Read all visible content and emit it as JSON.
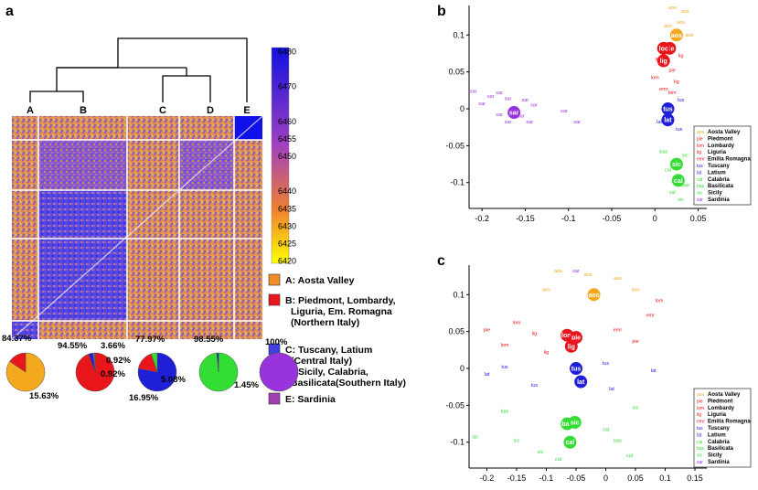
{
  "panel_labels": {
    "a": "a",
    "b": "b",
    "c": "c"
  },
  "colors": {
    "aos": "#f4a81d",
    "northern": "#e8161b",
    "central": "#1f1fd8",
    "southern": "#33dd33",
    "sardinia": "#9933dd",
    "heat_low": "#ffff00",
    "heat_mid": "#a040c0",
    "heat_high": "#1010e0"
  },
  "heatmap": {
    "cluster_labels": [
      "A",
      "B",
      "C",
      "D",
      "E"
    ],
    "colorbar": {
      "min": 6420,
      "max": 6480,
      "ticks": [
        "6480",
        "6470",
        "6460",
        "6455",
        "6450",
        "6440",
        "6435",
        "6430",
        "6425",
        "6420"
      ]
    }
  },
  "legend_a": [
    {
      "key": "A",
      "line1": "A: Aosta Valley",
      "line2": "",
      "line3": "",
      "color": "#f28c28"
    },
    {
      "key": "B",
      "line1": "B: Piedmont, Lombardy,",
      "line2": "Liguria, Em. Romagna",
      "line3": "(Northern Italy)",
      "color": "#e8161b"
    },
    {
      "key": "C",
      "line1": "C: Tuscany, Latium",
      "line2": "(Central Italy)",
      "line3": "",
      "color": "#4040e0"
    },
    {
      "key": "D",
      "line1": "D: Sicily, Calabria,",
      "line2": "Basilicata(Southern Italy)",
      "line3": "",
      "color": "#ccee22"
    },
    {
      "key": "E",
      "line1": "E: Sardinia",
      "line2": "",
      "line3": "",
      "color": "#a040b0"
    }
  ],
  "pies": [
    {
      "color": "#f4a81d",
      "slices": [
        {
          "value": 84.37,
          "label": "84.37%",
          "color": "#f4a81d"
        },
        {
          "value": 15.63,
          "label": "15.63%",
          "color": "#e8161b"
        }
      ]
    },
    {
      "color": "#e8161b",
      "slices": [
        {
          "value": 94.55,
          "label": "94.55%",
          "color": "#e8161b"
        },
        {
          "value": 3.66,
          "label": "3.66%",
          "color": "#1f1fd8"
        },
        {
          "value": 0.92,
          "label": "0.92%",
          "color": "#33dd33"
        },
        {
          "value": 0.92,
          "label": "0.92%",
          "color": "#9933dd"
        }
      ]
    },
    {
      "color": "#1f1fd8",
      "slices": [
        {
          "value": 77.97,
          "label": "77.97%",
          "color": "#1f1fd8"
        },
        {
          "value": 16.95,
          "label": "16.95%",
          "color": "#e8161b"
        },
        {
          "value": 5.08,
          "label": "5.08%",
          "color": "#33dd33"
        }
      ]
    },
    {
      "color": "#33dd33",
      "slices": [
        {
          "value": 98.55,
          "label": "98.55%",
          "color": "#33dd33"
        },
        {
          "value": 1.45,
          "label": "1.45%",
          "color": "#1f1fd8"
        }
      ]
    },
    {
      "color": "#9933dd",
      "slices": [
        {
          "value": 100,
          "label": "100%",
          "color": "#9933dd"
        }
      ]
    }
  ],
  "chart_data": [
    {
      "panel": "b",
      "type": "scatter",
      "xlim": [
        -0.215,
        0.06
      ],
      "ylim": [
        -0.135,
        0.14
      ],
      "x_ticks": [
        "-0.2",
        "-0.15",
        "-0.1",
        "-0.05",
        "0",
        "0.05"
      ],
      "y_ticks": [
        "0.1",
        "0.05",
        "0",
        "-0.05",
        "-0.1"
      ],
      "legend": [
        {
          "code": "aos",
          "name": "Aosta Valley",
          "color": "#f4a81d"
        },
        {
          "code": "pie",
          "name": "Piedmont",
          "color": "#e8161b"
        },
        {
          "code": "lom",
          "name": "Lombardy",
          "color": "#e8161b"
        },
        {
          "code": "lig",
          "name": "Liguria",
          "color": "#e8161b"
        },
        {
          "code": "emr",
          "name": "Emilia Romagna",
          "color": "#e8161b"
        },
        {
          "code": "tus",
          "name": "Tuscany",
          "color": "#1f1fd8"
        },
        {
          "code": "lat",
          "name": "Latium",
          "color": "#1f1fd8"
        },
        {
          "code": "cal",
          "name": "Calabria",
          "color": "#33dd33"
        },
        {
          "code": "bas",
          "name": "Basilicata",
          "color": "#33dd33"
        },
        {
          "code": "sic",
          "name": "Sicily",
          "color": "#33dd33"
        },
        {
          "code": "sar",
          "name": "Sardinia",
          "color": "#9933dd"
        }
      ],
      "centroids": [
        {
          "label": "aos",
          "x": 0.025,
          "y": 0.1,
          "color": "#f4a81d"
        },
        {
          "label": "lig",
          "x": 0.01,
          "y": 0.065,
          "color": "#e8161b"
        },
        {
          "label": "pie",
          "x": 0.017,
          "y": 0.082,
          "color": "#e8161b"
        },
        {
          "label": "loc",
          "x": 0.01,
          "y": 0.082,
          "color": "#e8161b"
        },
        {
          "label": "tus",
          "x": 0.015,
          "y": 0.0,
          "color": "#1f1fd8"
        },
        {
          "label": "lat",
          "x": 0.015,
          "y": -0.015,
          "color": "#1f1fd8"
        },
        {
          "label": "sic",
          "x": 0.025,
          "y": -0.075,
          "color": "#33dd33"
        },
        {
          "label": "cal",
          "x": 0.027,
          "y": -0.097,
          "color": "#33dd33"
        },
        {
          "label": "sar",
          "x": -0.163,
          "y": -0.005,
          "color": "#9933dd"
        }
      ],
      "points": [
        {
          "label": "aos",
          "x": 0.02,
          "y": 0.135,
          "color": "#f4a81d"
        },
        {
          "label": "aos",
          "x": 0.035,
          "y": 0.13,
          "color": "#f4a81d"
        },
        {
          "label": "aos",
          "x": 0.03,
          "y": 0.115,
          "color": "#f4a81d"
        },
        {
          "label": "aos",
          "x": 0.015,
          "y": 0.11,
          "color": "#f4a81d"
        },
        {
          "label": "aos",
          "x": 0.04,
          "y": 0.098,
          "color": "#f4a81d"
        },
        {
          "label": "lig",
          "x": 0.03,
          "y": 0.07,
          "color": "#e8161b"
        },
        {
          "label": "lom",
          "x": 0.005,
          "y": 0.065,
          "color": "#e8161b"
        },
        {
          "label": "pie",
          "x": 0.02,
          "y": 0.05,
          "color": "#e8161b"
        },
        {
          "label": "lom",
          "x": 0.0,
          "y": 0.04,
          "color": "#e8161b"
        },
        {
          "label": "lig",
          "x": 0.025,
          "y": 0.035,
          "color": "#e8161b"
        },
        {
          "label": "emr",
          "x": 0.01,
          "y": 0.025,
          "color": "#e8161b"
        },
        {
          "label": "lom",
          "x": 0.02,
          "y": 0.02,
          "color": "#e8161b"
        },
        {
          "label": "tus",
          "x": 0.03,
          "y": 0.01,
          "color": "#1f1fd8"
        },
        {
          "label": "lat",
          "x": 0.005,
          "y": -0.02,
          "color": "#1f1fd8"
        },
        {
          "label": "tus",
          "x": 0.028,
          "y": -0.03,
          "color": "#1f1fd8"
        },
        {
          "label": "bas",
          "x": 0.01,
          "y": -0.06,
          "color": "#33dd33"
        },
        {
          "label": "sic",
          "x": 0.035,
          "y": -0.065,
          "color": "#33dd33"
        },
        {
          "label": "cal",
          "x": 0.015,
          "y": -0.085,
          "color": "#33dd33"
        },
        {
          "label": "bas",
          "x": 0.035,
          "y": -0.105,
          "color": "#33dd33"
        },
        {
          "label": "cal",
          "x": 0.02,
          "y": -0.115,
          "color": "#33dd33"
        },
        {
          "label": "sic",
          "x": 0.03,
          "y": -0.125,
          "color": "#33dd33"
        },
        {
          "label": "sar",
          "x": -0.21,
          "y": 0.022,
          "color": "#9933dd"
        },
        {
          "label": "sar",
          "x": -0.19,
          "y": 0.015,
          "color": "#9933dd"
        },
        {
          "label": "sar",
          "x": -0.2,
          "y": 0.005,
          "color": "#9933dd"
        },
        {
          "label": "sar",
          "x": -0.18,
          "y": 0.02,
          "color": "#9933dd"
        },
        {
          "label": "sar",
          "x": -0.17,
          "y": 0.012,
          "color": "#9933dd"
        },
        {
          "label": "sar",
          "x": -0.15,
          "y": 0.01,
          "color": "#9933dd"
        },
        {
          "label": "sar",
          "x": -0.14,
          "y": 0.003,
          "color": "#9933dd"
        },
        {
          "label": "sar",
          "x": -0.18,
          "y": -0.01,
          "color": "#9933dd"
        },
        {
          "label": "sar",
          "x": -0.155,
          "y": -0.012,
          "color": "#9933dd"
        },
        {
          "label": "sar",
          "x": -0.17,
          "y": -0.02,
          "color": "#9933dd"
        },
        {
          "label": "sar",
          "x": -0.145,
          "y": -0.02,
          "color": "#9933dd"
        },
        {
          "label": "sar",
          "x": -0.105,
          "y": -0.005,
          "color": "#9933dd"
        },
        {
          "label": "sar",
          "x": -0.09,
          "y": -0.02,
          "color": "#9933dd"
        }
      ]
    },
    {
      "panel": "c",
      "type": "scatter",
      "xlim": [
        -0.23,
        0.17
      ],
      "ylim": [
        -0.135,
        0.14
      ],
      "x_ticks": [
        "-0.2",
        "-0.15",
        "-0.1",
        "-0.05",
        "0",
        "0.05",
        "0.1",
        "0.15"
      ],
      "y_ticks": [
        "0.1",
        "0.05",
        "0",
        "-0.05",
        "-0.1"
      ],
      "legend": [
        {
          "code": "aos",
          "name": "Aosta Valley",
          "color": "#f4a81d"
        },
        {
          "code": "pie",
          "name": "Piedmont",
          "color": "#e8161b"
        },
        {
          "code": "lom",
          "name": "Lombardy",
          "color": "#e8161b"
        },
        {
          "code": "lig",
          "name": "Liguria",
          "color": "#e8161b"
        },
        {
          "code": "emr",
          "name": "Emilia Romagna",
          "color": "#e8161b"
        },
        {
          "code": "tus",
          "name": "Tuscany",
          "color": "#1f1fd8"
        },
        {
          "code": "lat",
          "name": "Latium",
          "color": "#1f1fd8"
        },
        {
          "code": "cal",
          "name": "Calabria",
          "color": "#33dd33"
        },
        {
          "code": "bas",
          "name": "Basilicata",
          "color": "#33dd33"
        },
        {
          "code": "sic",
          "name": "Sicily",
          "color": "#33dd33"
        },
        {
          "code": "sar",
          "name": "Sardinia",
          "color": "#9933dd"
        }
      ],
      "centroids": [
        {
          "label": "aos",
          "x": -0.02,
          "y": 0.1,
          "color": "#f4a81d"
        },
        {
          "label": "lom",
          "x": -0.065,
          "y": 0.045,
          "color": "#e8161b"
        },
        {
          "label": "pie",
          "x": -0.05,
          "y": 0.042,
          "color": "#e8161b"
        },
        {
          "label": "lig",
          "x": -0.058,
          "y": 0.03,
          "color": "#e8161b"
        },
        {
          "label": "tus",
          "x": -0.05,
          "y": 0.0,
          "color": "#1f1fd8"
        },
        {
          "label": "lat",
          "x": -0.042,
          "y": -0.018,
          "color": "#1f1fd8"
        },
        {
          "label": "bas",
          "x": -0.065,
          "y": -0.075,
          "color": "#33dd33"
        },
        {
          "label": "sic",
          "x": -0.052,
          "y": -0.073,
          "color": "#33dd33"
        },
        {
          "label": "cal",
          "x": -0.06,
          "y": -0.1,
          "color": "#33dd33"
        }
      ],
      "points": [
        {
          "label": "aos",
          "x": -0.08,
          "y": 0.13,
          "color": "#f4a81d"
        },
        {
          "label": "aos",
          "x": -0.03,
          "y": 0.125,
          "color": "#f4a81d"
        },
        {
          "label": "aos",
          "x": 0.02,
          "y": 0.12,
          "color": "#f4a81d"
        },
        {
          "label": "aos",
          "x": 0.05,
          "y": 0.105,
          "color": "#f4a81d"
        },
        {
          "label": "aos",
          "x": -0.1,
          "y": 0.105,
          "color": "#f4a81d"
        },
        {
          "label": "lom",
          "x": 0.09,
          "y": 0.09,
          "color": "#e8161b"
        },
        {
          "label": "emr",
          "x": 0.075,
          "y": 0.07,
          "color": "#e8161b"
        },
        {
          "label": "pie",
          "x": -0.2,
          "y": 0.05,
          "color": "#e8161b"
        },
        {
          "label": "lom",
          "x": -0.15,
          "y": 0.06,
          "color": "#e8161b"
        },
        {
          "label": "lig",
          "x": -0.12,
          "y": 0.045,
          "color": "#e8161b"
        },
        {
          "label": "emr",
          "x": 0.02,
          "y": 0.05,
          "color": "#e8161b"
        },
        {
          "label": "pie",
          "x": 0.05,
          "y": 0.035,
          "color": "#e8161b"
        },
        {
          "label": "lom",
          "x": -0.17,
          "y": 0.03,
          "color": "#e8161b"
        },
        {
          "label": "lig",
          "x": -0.1,
          "y": 0.02,
          "color": "#e8161b"
        },
        {
          "label": "tus",
          "x": -0.17,
          "y": 0.0,
          "color": "#1f1fd8"
        },
        {
          "label": "lat",
          "x": -0.2,
          "y": -0.01,
          "color": "#1f1fd8"
        },
        {
          "label": "tus",
          "x": 0.0,
          "y": 0.005,
          "color": "#1f1fd8"
        },
        {
          "label": "lat",
          "x": 0.08,
          "y": -0.005,
          "color": "#1f1fd8"
        },
        {
          "label": "tus",
          "x": -0.12,
          "y": -0.025,
          "color": "#1f1fd8"
        },
        {
          "label": "lat",
          "x": 0.01,
          "y": -0.03,
          "color": "#1f1fd8"
        },
        {
          "label": "sic",
          "x": -0.22,
          "y": -0.095,
          "color": "#33dd33"
        },
        {
          "label": "bas",
          "x": -0.17,
          "y": -0.06,
          "color": "#33dd33"
        },
        {
          "label": "sic",
          "x": -0.15,
          "y": -0.1,
          "color": "#33dd33"
        },
        {
          "label": "sic",
          "x": 0.05,
          "y": -0.055,
          "color": "#33dd33"
        },
        {
          "label": "cal",
          "x": 0.0,
          "y": -0.085,
          "color": "#33dd33"
        },
        {
          "label": "bas",
          "x": 0.02,
          "y": -0.1,
          "color": "#33dd33"
        },
        {
          "label": "cal",
          "x": 0.04,
          "y": -0.12,
          "color": "#33dd33"
        },
        {
          "label": "sic",
          "x": -0.11,
          "y": -0.115,
          "color": "#33dd33"
        },
        {
          "label": "cal",
          "x": -0.08,
          "y": -0.125,
          "color": "#33dd33"
        },
        {
          "label": "sar",
          "x": -0.05,
          "y": 0.13,
          "color": "#9933dd"
        }
      ]
    }
  ]
}
